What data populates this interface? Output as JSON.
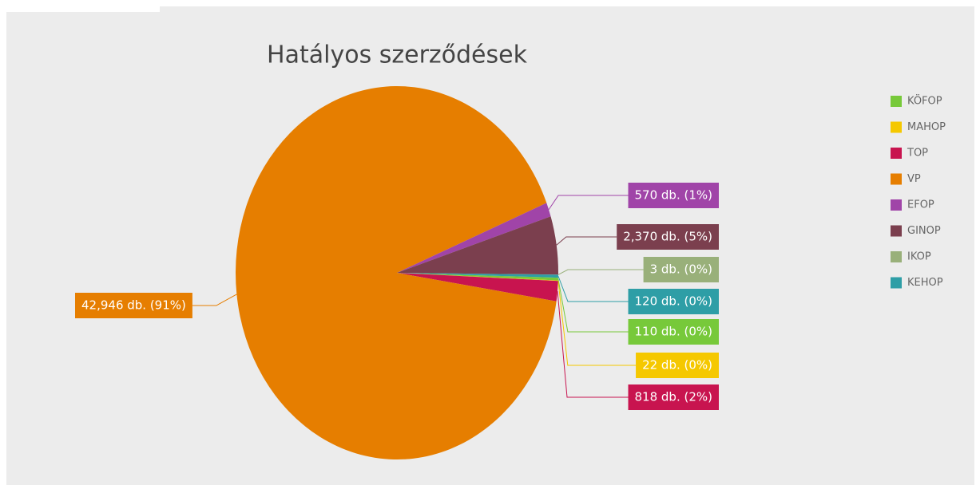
{
  "chart_data": {
    "type": "pie",
    "title": "Hatályos szerződések",
    "categories": [
      "KÖFOP",
      "MAHOP",
      "TOP",
      "VP",
      "EFOP",
      "GINOP",
      "IKOP",
      "KEHOP"
    ],
    "values": [
      110,
      22,
      818,
      42946,
      570,
      2370,
      3,
      120
    ],
    "value_labels": [
      "110 db. (0%)",
      "22 db. (0%)",
      "818 db. (2%)",
      "42,946 db. (91%)",
      "570 db. (1%)",
      "2,370 db. (5%)",
      "3 db. (0%)",
      "120 db. (0%)"
    ],
    "colors": [
      "#77c93a",
      "#f5c800",
      "#c8144f",
      "#e67e00",
      "#a044a8",
      "#7b3f4e",
      "#99b07a",
      "#2e9ea6"
    ],
    "legend": "right"
  }
}
